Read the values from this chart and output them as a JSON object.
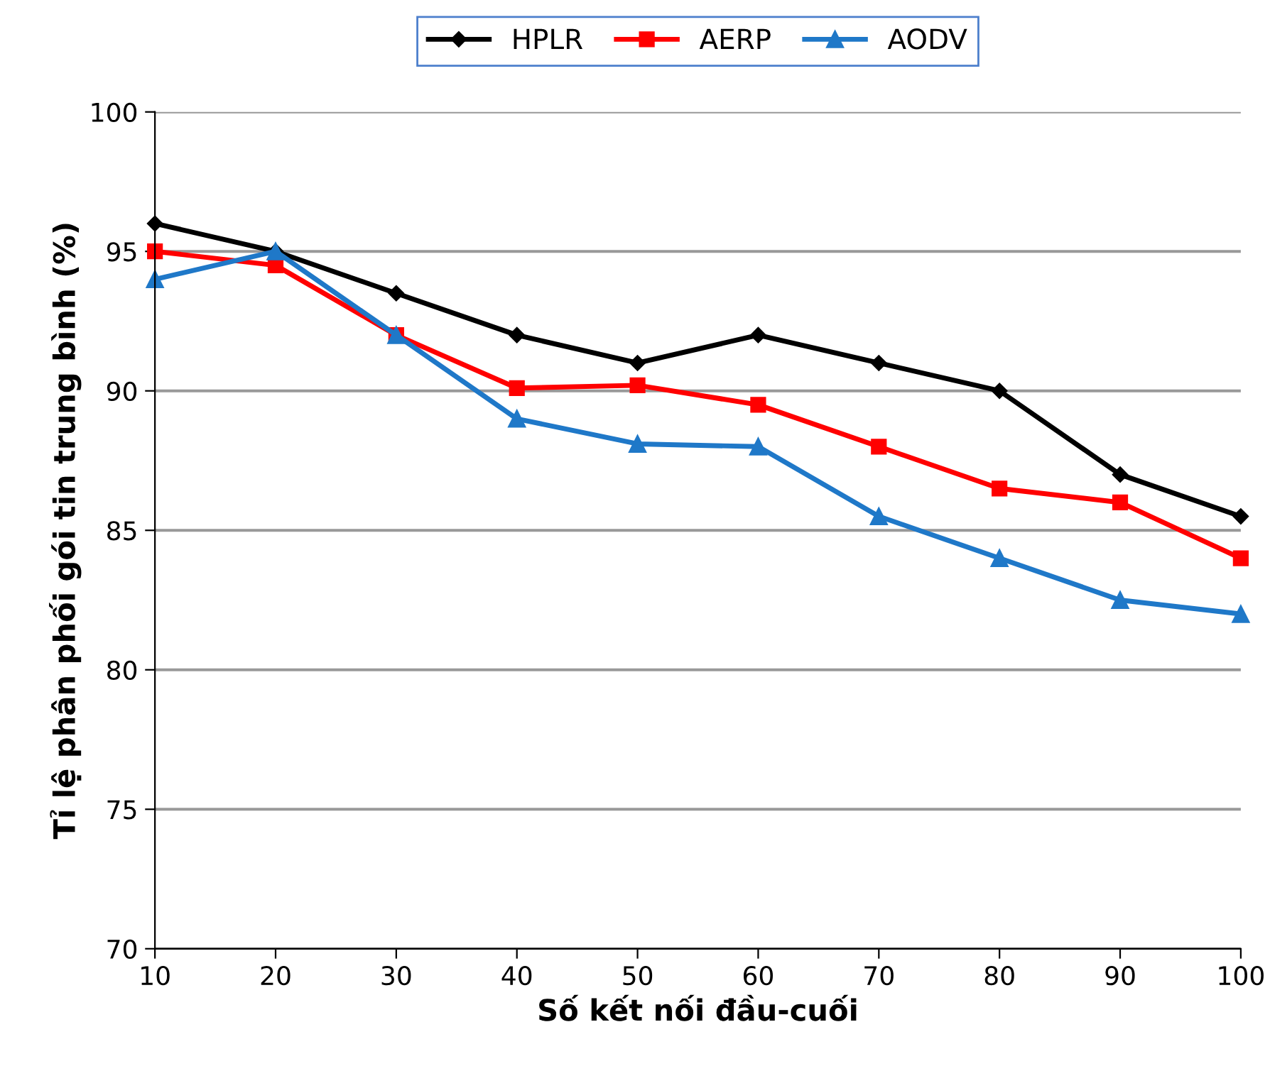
{
  "chart_data": {
    "type": "line",
    "xlabel": "Số kết nối đầu-cuối",
    "ylabel": "Tỉ lệ phân phối gói tin trung bình (%)",
    "x": [
      10,
      20,
      30,
      40,
      50,
      60,
      70,
      80,
      90,
      100
    ],
    "series": [
      {
        "name": "HPLR",
        "color": "#000000",
        "marker": "diamond",
        "values": [
          96,
          95,
          93.5,
          92,
          91,
          92,
          91,
          90,
          87,
          85.5
        ]
      },
      {
        "name": "AERP",
        "color": "#ff0000",
        "marker": "square",
        "values": [
          95,
          94.5,
          92,
          90.1,
          90.2,
          89.5,
          88,
          86.5,
          86,
          84
        ]
      },
      {
        "name": "AODV",
        "color": "#1f78c8",
        "marker": "triangle",
        "values": [
          94,
          95,
          92,
          89,
          88.1,
          88,
          85.5,
          84,
          82.5,
          82
        ]
      }
    ],
    "xlim": [
      10,
      100
    ],
    "xticks": [
      10,
      20,
      30,
      40,
      50,
      60,
      70,
      80,
      90,
      100
    ],
    "ylim": [
      70,
      100
    ],
    "yticks": [
      70,
      75,
      80,
      85,
      90,
      95,
      100
    ],
    "grid": "y",
    "legend": "top",
    "line_style": "solid"
  }
}
